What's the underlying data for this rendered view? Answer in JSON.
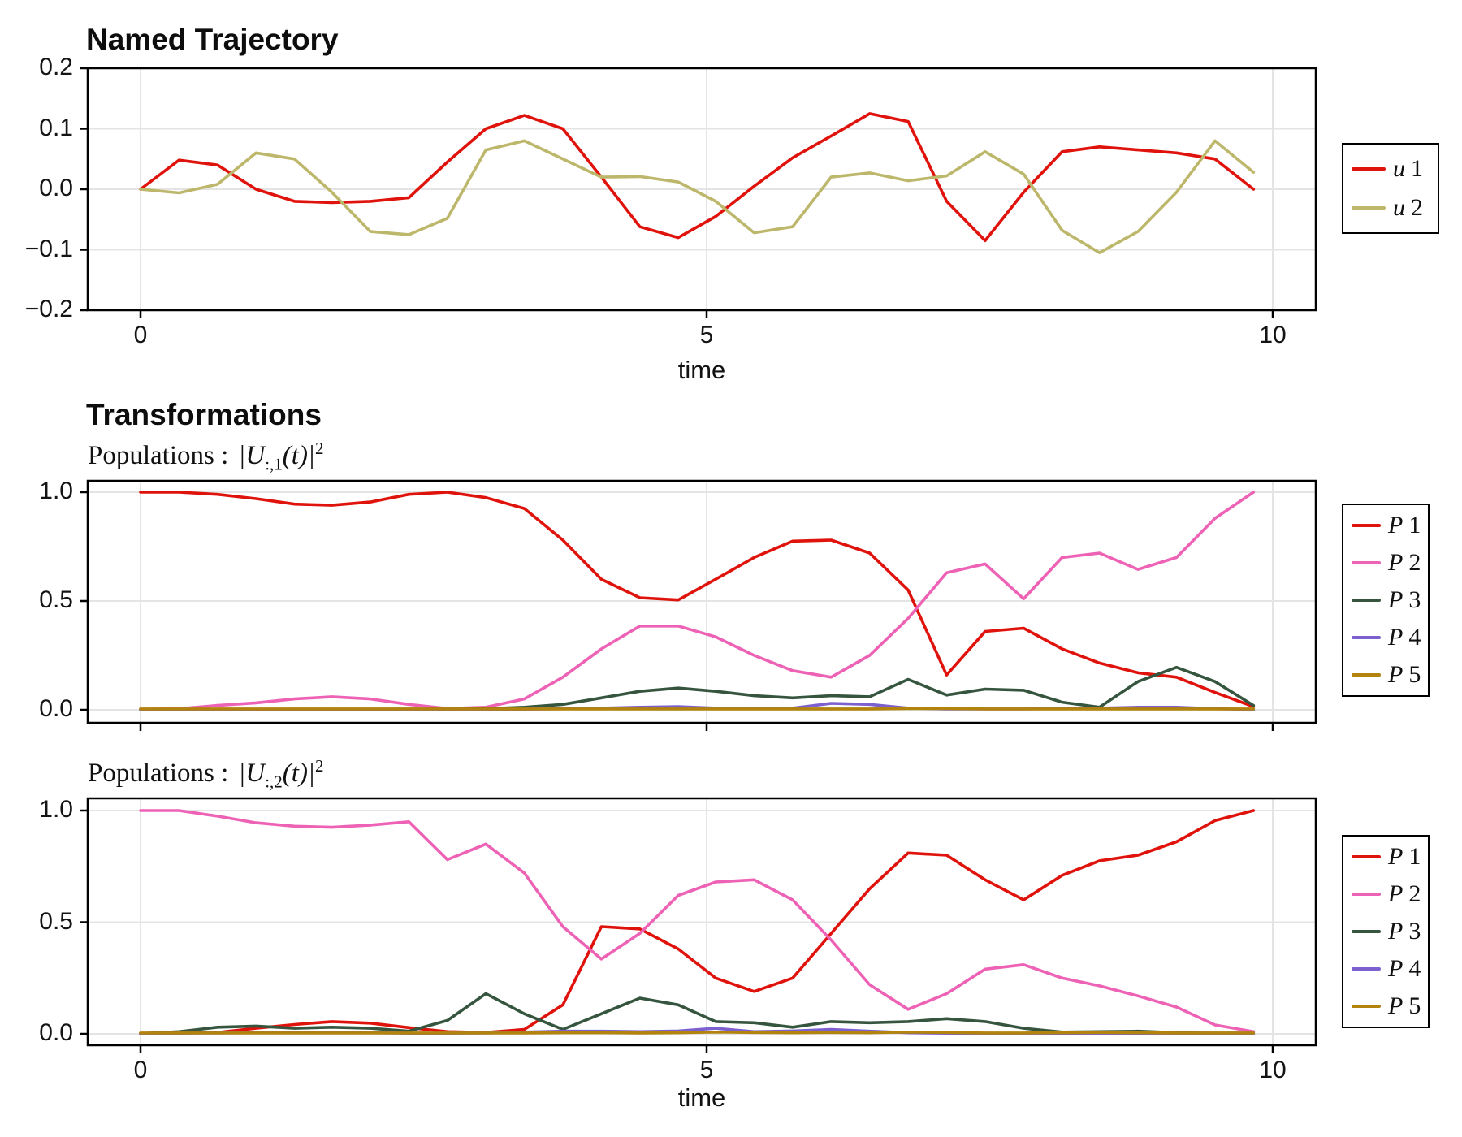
{
  "style": {
    "background": "#ffffff",
    "frame_color": "#000000",
    "grid_color": "#e4e4e4",
    "text_color": "#141414"
  },
  "chart_data": [
    {
      "type": "line",
      "title": "Named Trajectory",
      "xlabel": "time",
      "ylim": [
        -0.2,
        0.2
      ],
      "xlim": [
        -0.47,
        10.38
      ],
      "grid": true,
      "legend_position": "outer-right",
      "x_ticks": [
        {
          "v": 0,
          "label": "0"
        },
        {
          "v": 5,
          "label": "5"
        },
        {
          "v": 10,
          "label": "10"
        }
      ],
      "y_ticks": [
        {
          "v": 0.2,
          "label": "0.2"
        },
        {
          "v": 0.1,
          "label": "0.1"
        },
        {
          "v": 0,
          "label": "0.0"
        },
        {
          "v": -0.1,
          "label": "−0.1"
        },
        {
          "v": -0.2,
          "label": "−0.2"
        }
      ],
      "x": [
        0,
        0.34,
        0.68,
        1.02,
        1.36,
        1.69,
        2.03,
        2.37,
        2.71,
        3.05,
        3.39,
        3.73,
        4.07,
        4.41,
        4.75,
        5.08,
        5.42,
        5.76,
        6.1,
        6.44,
        6.78,
        7.12,
        7.46,
        7.8,
        8.14,
        8.47,
        8.81,
        9.15,
        9.49,
        9.83
      ],
      "series": [
        {
          "name": "u 1",
          "var": "u",
          "index": "1",
          "color": "#e0130c",
          "values": [
            0,
            0.048,
            0.04,
            0,
            -0.02,
            -0.022,
            -0.02,
            -0.014,
            0.045,
            0.1,
            0.122,
            0.1,
            0.02,
            -0.062,
            -0.08,
            -0.045,
            0.005,
            0.052,
            0.088,
            0.125,
            0.112,
            -0.02,
            -0.085,
            -0.005,
            0.062,
            0.07,
            0.065,
            0.06,
            0.05,
            0
          ]
        },
        {
          "name": "u 2",
          "var": "u",
          "index": "2",
          "color": "#bdb76b",
          "values": [
            0,
            -0.006,
            0.008,
            0.06,
            0.05,
            -0.005,
            -0.07,
            -0.075,
            -0.048,
            0.065,
            0.08,
            0.05,
            0.02,
            0.021,
            0.012,
            -0.02,
            -0.072,
            -0.062,
            0.02,
            0.027,
            0.014,
            0.022,
            0.062,
            0.025,
            -0.068,
            -0.105,
            -0.07,
            -0.005,
            0.08,
            0.028
          ]
        }
      ]
    },
    {
      "type": "line",
      "section_title": "Transformations",
      "subtitle": {
        "pre": "Populations :",
        "lhs": "|U",
        "sub": ":,1",
        "mid": "(t)|",
        "sup": "2"
      },
      "ylim": [
        -0.06,
        1.05
      ],
      "xlim": [
        -0.47,
        10.38
      ],
      "grid": true,
      "legend_position": "outer-right",
      "x_ticks": [
        {
          "v": 0,
          "label": "0"
        },
        {
          "v": 5,
          "label": "5"
        },
        {
          "v": 10,
          "label": "10"
        }
      ],
      "y_ticks": [
        {
          "v": 1,
          "label": "1.0"
        },
        {
          "v": 0.5,
          "label": "0.5"
        },
        {
          "v": 0,
          "label": "0.0"
        }
      ],
      "x": [
        0,
        0.34,
        0.68,
        1.02,
        1.36,
        1.69,
        2.03,
        2.37,
        2.71,
        3.05,
        3.39,
        3.73,
        4.07,
        4.41,
        4.75,
        5.08,
        5.42,
        5.76,
        6.1,
        6.44,
        6.78,
        7.12,
        7.46,
        7.8,
        8.14,
        8.47,
        8.81,
        9.15,
        9.49,
        9.83
      ],
      "series": [
        {
          "name": "P 1",
          "var": "P",
          "index": "1",
          "color": "#e0130c",
          "values": [
            1,
            1,
            0.99,
            0.97,
            0.945,
            0.94,
            0.955,
            0.99,
            1,
            0.975,
            0.925,
            0.78,
            0.6,
            0.515,
            0.505,
            0.6,
            0.7,
            0.775,
            0.78,
            0.72,
            0.55,
            0.16,
            0.36,
            0.375,
            0.28,
            0.215,
            0.17,
            0.15,
            0.08,
            0.015
          ]
        },
        {
          "name": "P 2",
          "var": "P",
          "index": "2",
          "color": "#ed62b5",
          "values": [
            0.003,
            0.005,
            0.02,
            0.032,
            0.05,
            0.06,
            0.05,
            0.025,
            0.006,
            0.012,
            0.05,
            0.15,
            0.28,
            0.385,
            0.385,
            0.335,
            0.25,
            0.18,
            0.15,
            0.25,
            0.42,
            0.63,
            0.67,
            0.51,
            0.7,
            0.72,
            0.645,
            0.7,
            0.88,
            1
          ]
        },
        {
          "name": "P 3",
          "var": "P",
          "index": "3",
          "color": "#36553f",
          "values": [
            0.002,
            0.002,
            0.002,
            0.002,
            0.003,
            0.003,
            0.003,
            0.003,
            0.003,
            0.005,
            0.012,
            0.025,
            0.055,
            0.085,
            0.1,
            0.085,
            0.065,
            0.055,
            0.065,
            0.06,
            0.14,
            0.068,
            0.095,
            0.09,
            0.035,
            0.012,
            0.13,
            0.195,
            0.13,
            0.02
          ]
        },
        {
          "name": "P 4",
          "var": "P",
          "index": "4",
          "color": "#7d60cf",
          "values": [
            0.002,
            0.002,
            0.002,
            0.002,
            0.002,
            0.002,
            0.002,
            0.002,
            0.002,
            0.002,
            0.003,
            0.005,
            0.008,
            0.012,
            0.015,
            0.008,
            0.005,
            0.008,
            0.03,
            0.025,
            0.008,
            0.004,
            0.004,
            0.004,
            0.006,
            0.008,
            0.012,
            0.012,
            0.005,
            0.002
          ]
        },
        {
          "name": "P 5",
          "var": "P",
          "index": "5",
          "color": "#b2830d",
          "values": [
            0.004,
            0.004,
            0.004,
            0.004,
            0.004,
            0.004,
            0.004,
            0.004,
            0.004,
            0.004,
            0.004,
            0.004,
            0.004,
            0.004,
            0.004,
            0.004,
            0.004,
            0.004,
            0.004,
            0.004,
            0.006,
            0.006,
            0.004,
            0.004,
            0.004,
            0.004,
            0.004,
            0.004,
            0.004,
            0.004
          ]
        }
      ]
    },
    {
      "type": "line",
      "subtitle": {
        "pre": "Populations :",
        "lhs": "|U",
        "sub": ":,2",
        "mid": "(t)|",
        "sup": "2"
      },
      "xlabel": "time",
      "ylim": [
        -0.05,
        1.05
      ],
      "xlim": [
        -0.47,
        10.38
      ],
      "grid": true,
      "legend_position": "outer-right",
      "x_ticks": [
        {
          "v": 0,
          "label": "0"
        },
        {
          "v": 5,
          "label": "5"
        },
        {
          "v": 10,
          "label": "10"
        }
      ],
      "y_ticks": [
        {
          "v": 1,
          "label": "1.0"
        },
        {
          "v": 0.5,
          "label": "0.5"
        },
        {
          "v": 0,
          "label": "0.0"
        }
      ],
      "x": [
        0,
        0.34,
        0.68,
        1.02,
        1.36,
        1.69,
        2.03,
        2.37,
        2.71,
        3.05,
        3.39,
        3.73,
        4.07,
        4.41,
        4.75,
        5.08,
        5.42,
        5.76,
        6.1,
        6.44,
        6.78,
        7.12,
        7.46,
        7.8,
        8.14,
        8.47,
        8.81,
        9.15,
        9.49,
        9.83
      ],
      "series": [
        {
          "name": "P 1",
          "var": "P",
          "index": "1",
          "color": "#e0130c",
          "values": [
            0.002,
            0.004,
            0.006,
            0.025,
            0.042,
            0.055,
            0.048,
            0.028,
            0.01,
            0.006,
            0.02,
            0.13,
            0.48,
            0.47,
            0.38,
            0.25,
            0.19,
            0.25,
            0.45,
            0.65,
            0.81,
            0.8,
            0.69,
            0.6,
            0.71,
            0.775,
            0.8,
            0.86,
            0.955,
            1
          ]
        },
        {
          "name": "P 2",
          "var": "P",
          "index": "2",
          "color": "#ed62b5",
          "values": [
            1,
            1,
            0.975,
            0.945,
            0.93,
            0.925,
            0.935,
            0.95,
            0.78,
            0.85,
            0.72,
            0.48,
            0.335,
            0.45,
            0.62,
            0.68,
            0.69,
            0.6,
            0.42,
            0.22,
            0.11,
            0.18,
            0.29,
            0.31,
            0.25,
            0.215,
            0.17,
            0.12,
            0.04,
            0.01
          ]
        },
        {
          "name": "P 3",
          "var": "P",
          "index": "3",
          "color": "#36553f",
          "values": [
            0.002,
            0.01,
            0.03,
            0.035,
            0.025,
            0.03,
            0.025,
            0.012,
            0.06,
            0.18,
            0.09,
            0.02,
            0.09,
            0.16,
            0.13,
            0.055,
            0.05,
            0.03,
            0.055,
            0.05,
            0.055,
            0.068,
            0.055,
            0.025,
            0.008,
            0.01,
            0.012,
            0.005,
            0.003,
            0.003
          ]
        },
        {
          "name": "P 4",
          "var": "P",
          "index": "4",
          "color": "#7d60cf",
          "values": [
            0.002,
            0.003,
            0.004,
            0.005,
            0.007,
            0.007,
            0.005,
            0.003,
            0.003,
            0.004,
            0.008,
            0.012,
            0.012,
            0.01,
            0.013,
            0.025,
            0.01,
            0.013,
            0.02,
            0.012,
            0.005,
            0.003,
            0.002,
            0.002,
            0.002,
            0.002,
            0.002,
            0.002,
            0.003,
            0.003
          ]
        },
        {
          "name": "P 5",
          "var": "P",
          "index": "5",
          "color": "#b2830d",
          "values": [
            0.004,
            0.004,
            0.004,
            0.004,
            0.004,
            0.004,
            0.004,
            0.004,
            0.004,
            0.004,
            0.004,
            0.005,
            0.005,
            0.004,
            0.005,
            0.008,
            0.006,
            0.005,
            0.006,
            0.005,
            0.008,
            0.006,
            0.004,
            0.004,
            0.005,
            0.006,
            0.005,
            0.004,
            0.004,
            0.004
          ]
        }
      ]
    }
  ]
}
